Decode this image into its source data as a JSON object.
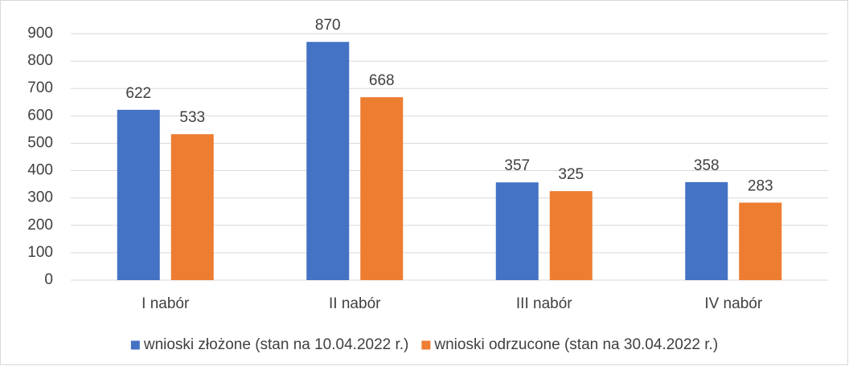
{
  "chart_data": {
    "type": "bar",
    "categories": [
      "I nabór",
      "II nabór",
      "III nabór",
      "IV nabór"
    ],
    "series": [
      {
        "name": "wnioski złożone (stan na 10.04.2022 r.)",
        "color": "#4472c4",
        "values": [
          622,
          870,
          357,
          358
        ]
      },
      {
        "name": "wnioski odrzucone (stan na 30.04.2022 r.)",
        "color": "#ed7d31",
        "values": [
          533,
          668,
          325,
          283
        ]
      }
    ],
    "ylim": [
      0,
      900
    ],
    "yticks": [
      0,
      100,
      200,
      300,
      400,
      500,
      600,
      700,
      800,
      900
    ],
    "grid": true,
    "legend": "bottom"
  }
}
